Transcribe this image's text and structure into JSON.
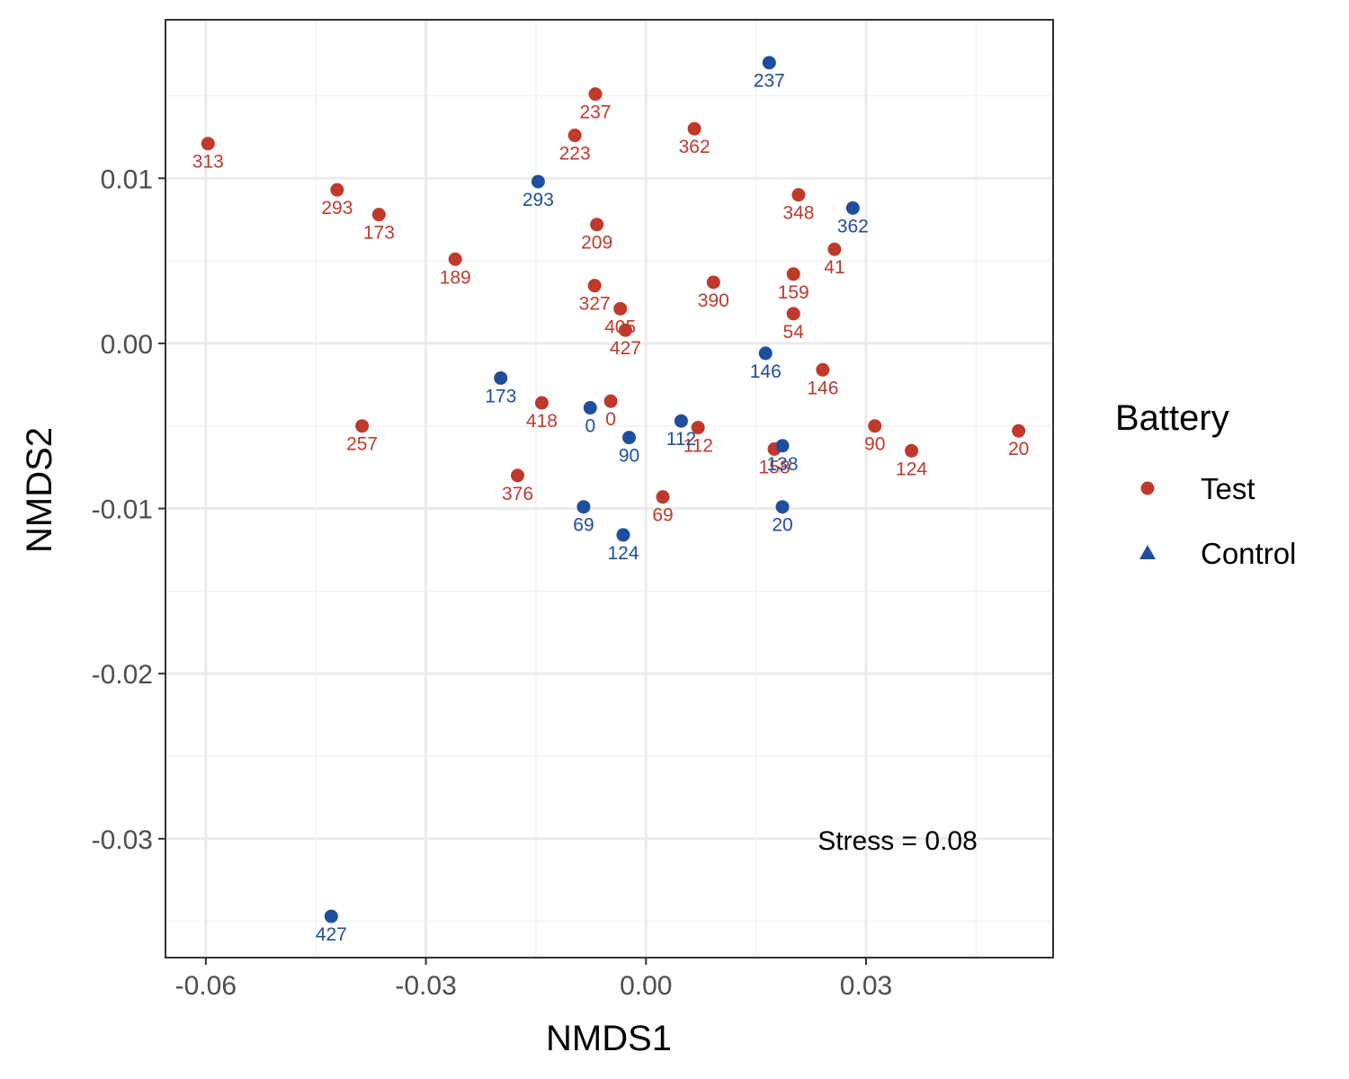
{
  "chart_data": {
    "type": "scatter",
    "xlabel": "NMDS1",
    "ylabel": "NMDS2",
    "xlim": [
      -0.0655,
      0.0555
    ],
    "ylim": [
      -0.0372,
      0.0196
    ],
    "x_ticks": [
      -0.06,
      -0.03,
      0.0,
      0.03
    ],
    "x_tick_labels": [
      "-0.06",
      "-0.03",
      "0.00",
      "0.03"
    ],
    "y_ticks": [
      0.01,
      0.0,
      -0.01,
      -0.02,
      -0.03
    ],
    "y_tick_labels": [
      "0.01",
      "0.00",
      "-0.01",
      "-0.02",
      "-0.03"
    ],
    "grid": true,
    "legend": {
      "title": "Battery",
      "position": "right",
      "entries": [
        {
          "name": "Test",
          "color": "#c0392b",
          "shape": "circle"
        },
        {
          "name": "Control",
          "color": "#1f4e9c",
          "shape": "triangle"
        }
      ]
    },
    "annotation": "Stress = 0.08",
    "series": [
      {
        "name": "Test",
        "color": "#c0392b",
        "points": [
          {
            "x": -0.0597,
            "y": 0.0121,
            "label": "313"
          },
          {
            "x": -0.0421,
            "y": 0.0093,
            "label": "293"
          },
          {
            "x": -0.0364,
            "y": 0.0078,
            "label": "173"
          },
          {
            "x": -0.026,
            "y": 0.0051,
            "label": "189"
          },
          {
            "x": -0.0387,
            "y": -0.005,
            "label": "257"
          },
          {
            "x": -0.0175,
            "y": -0.008,
            "label": "376"
          },
          {
            "x": -0.0142,
            "y": -0.0036,
            "label": "418"
          },
          {
            "x": -0.0069,
            "y": 0.0151,
            "label": "237"
          },
          {
            "x": -0.0097,
            "y": 0.0126,
            "label": "223"
          },
          {
            "x": -0.0067,
            "y": 0.0072,
            "label": "209"
          },
          {
            "x": -0.007,
            "y": 0.0035,
            "label": "327"
          },
          {
            "x": -0.0035,
            "y": 0.0021,
            "label": "405"
          },
          {
            "x": -0.0028,
            "y": 0.0008,
            "label": "427"
          },
          {
            "x": -0.0048,
            "y": -0.0035,
            "label": "0"
          },
          {
            "x": 0.0066,
            "y": 0.013,
            "label": "362"
          },
          {
            "x": 0.0092,
            "y": 0.0037,
            "label": "390"
          },
          {
            "x": 0.0071,
            "y": -0.0051,
            "label": "112"
          },
          {
            "x": 0.0023,
            "y": -0.0093,
            "label": "69"
          },
          {
            "x": 0.0208,
            "y": 0.009,
            "label": "348"
          },
          {
            "x": 0.0257,
            "y": 0.0057,
            "label": "41"
          },
          {
            "x": 0.0201,
            "y": 0.0042,
            "label": "159"
          },
          {
            "x": 0.0201,
            "y": 0.0018,
            "label": "54"
          },
          {
            "x": 0.0241,
            "y": -0.0016,
            "label": "146"
          },
          {
            "x": 0.0175,
            "y": -0.0064,
            "label": "158"
          },
          {
            "x": 0.0312,
            "y": -0.005,
            "label": "90"
          },
          {
            "x": 0.0362,
            "y": -0.0065,
            "label": "124"
          },
          {
            "x": 0.0508,
            "y": -0.0053,
            "label": "20"
          }
        ]
      },
      {
        "name": "Control",
        "color": "#1f4e9c",
        "points": [
          {
            "x": 0.0168,
            "y": 0.017,
            "label": "237"
          },
          {
            "x": -0.0147,
            "y": 0.0098,
            "label": "293"
          },
          {
            "x": 0.0282,
            "y": 0.0082,
            "label": "362"
          },
          {
            "x": 0.0163,
            "y": -0.0006,
            "label": "146"
          },
          {
            "x": -0.0198,
            "y": -0.0021,
            "label": "173"
          },
          {
            "x": -0.0076,
            "y": -0.0039,
            "label": "0"
          },
          {
            "x": -0.0023,
            "y": -0.0057,
            "label": "90"
          },
          {
            "x": 0.0048,
            "y": -0.0047,
            "label": "112"
          },
          {
            "x": 0.0186,
            "y": -0.0062,
            "label": "138"
          },
          {
            "x": 0.0186,
            "y": -0.0099,
            "label": "20"
          },
          {
            "x": -0.0085,
            "y": -0.0099,
            "label": "69"
          },
          {
            "x": -0.0031,
            "y": -0.0116,
            "label": "124"
          },
          {
            "x": -0.0429,
            "y": -0.0347,
            "label": "427"
          }
        ]
      }
    ]
  }
}
